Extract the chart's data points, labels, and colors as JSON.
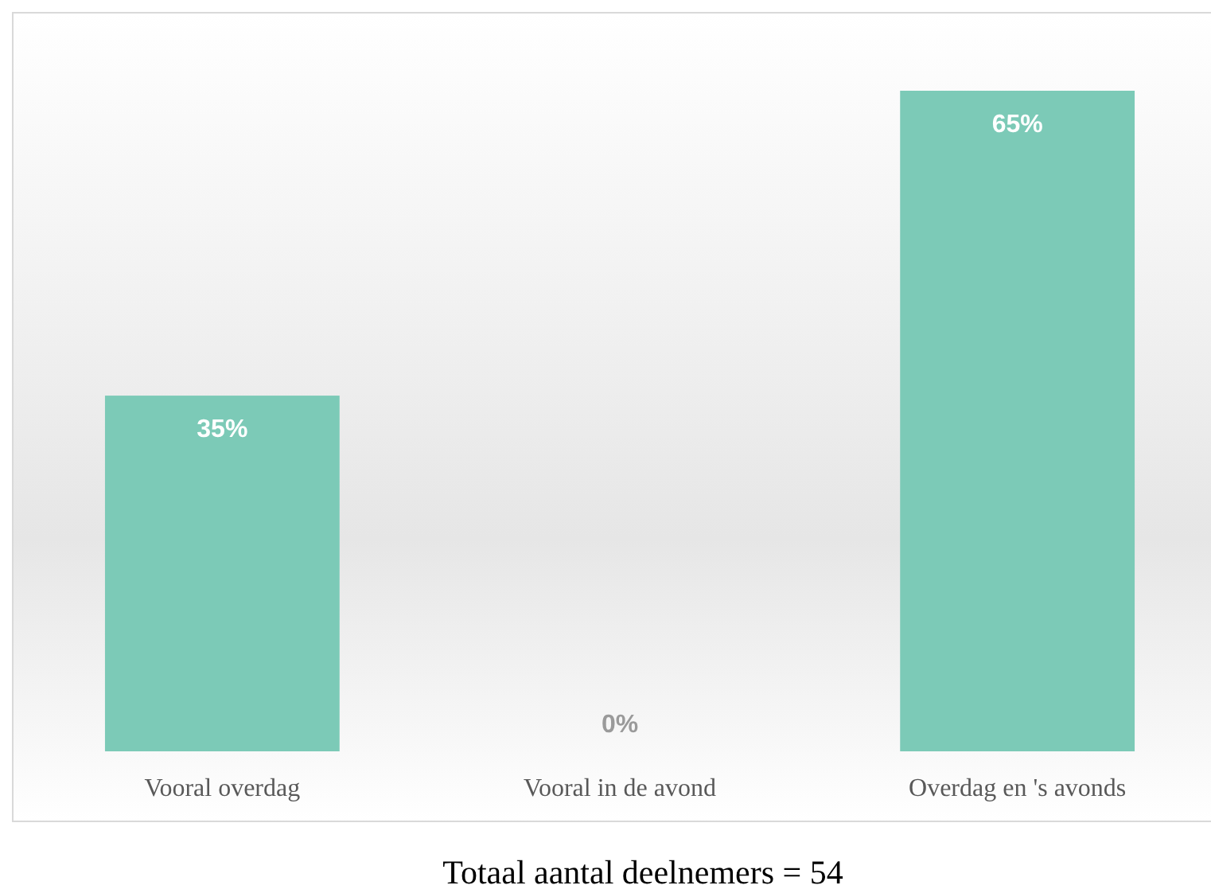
{
  "chart_data": {
    "type": "bar",
    "categories": [
      "Vooral overdag",
      "Vooral in de avond",
      "Overdag en 's avonds"
    ],
    "values": [
      35,
      0,
      65
    ],
    "value_labels": [
      "35%",
      "0%",
      "65%"
    ],
    "color": "#7ccab7",
    "annotations": [
      "Totaal aantal deelnemers = 54"
    ]
  }
}
